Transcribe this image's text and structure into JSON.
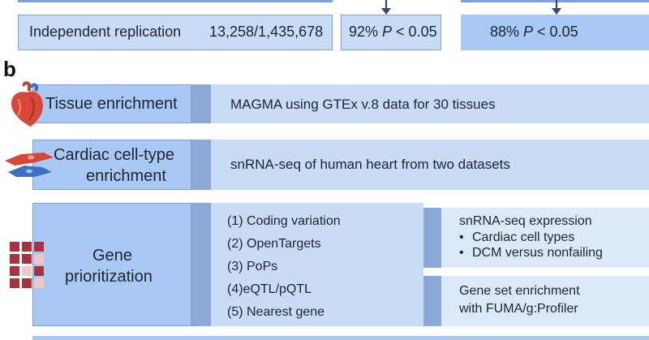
{
  "panel_a": {
    "replication_label": "Independent replication",
    "replication_count": "13,258/1,435,678",
    "result_1": "92% P < 0.05",
    "result_2": "88% P < 0.05"
  },
  "panel_b": {
    "panel_letter": "b",
    "rows": [
      {
        "label": "Tissue enrichment",
        "detail": "MAGMA using GTEx v.8 data for 30 tissues",
        "icon": "heart-icon"
      },
      {
        "label_line1": "Cardiac cell-type",
        "label_line2": "enrichment",
        "detail": "snRNA-seq of human heart from two datasets",
        "icon": "cardiac-cells-icon"
      },
      {
        "label_line1": "Gene",
        "label_line2": "prioritization",
        "icon": "heatmap-grid-icon",
        "methods": [
          "(1) Coding variation",
          "(2) OpenTargets",
          "(3) PoPs",
          "(4)eQTL/pQTL",
          "(5) Nearest gene"
        ],
        "expression_title": "snRNA-seq expression",
        "expression_items": [
          "Cardiac cell types",
          "DCM versus nonfailing"
        ],
        "geneset_line1": "Gene set enrichment",
        "geneset_line2": "with FUMA/g:Profiler"
      }
    ]
  },
  "colors": {
    "label_box": "#a9c8f3",
    "detail_box": "#c9dcf5",
    "pale_box": "#dce9f9",
    "connector": "#8aa9d6",
    "arrow": "#3b4a66"
  }
}
